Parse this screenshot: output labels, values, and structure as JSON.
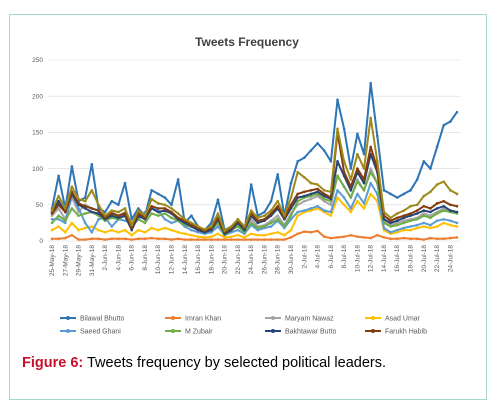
{
  "caption": {
    "label": "Figure 6:",
    "text": " Tweets frequency by selected political leaders."
  },
  "chart_data": {
    "type": "line",
    "title": "Tweets Frequency",
    "xlabel": "",
    "ylabel": "",
    "ylim": [
      0,
      250
    ],
    "yticks": [
      0,
      50,
      100,
      150,
      200,
      250
    ],
    "grid": true,
    "legend_position": "bottom",
    "x": [
      "25-May-18",
      "26-May-18",
      "27-May-18",
      "28-May-18",
      "29-May-18",
      "30-May-18",
      "31-May-18",
      "1-Jun-18",
      "2-Jun-18",
      "3-Jun-18",
      "4-Jun-18",
      "5-Jun-18",
      "6-Jun-18",
      "7-Jun-18",
      "8-Jun-18",
      "9-Jun-18",
      "10-Jun-18",
      "11-Jun-18",
      "12-Jun-18",
      "13-Jun-18",
      "14-Jun-18",
      "15-Jun-18",
      "16-Jun-18",
      "17-Jun-18",
      "18-Jun-18",
      "19-Jun-18",
      "20-Jun-18",
      "21-Jun-18",
      "22-Jun-18",
      "23-Jun-18",
      "24-Jun-18",
      "25-Jun-18",
      "26-Jun-18",
      "27-Jun-18",
      "28-Jun-18",
      "29-Jun-18",
      "30-Jun-18",
      "1-Jul-18",
      "2-Jul-18",
      "3-Jul-18",
      "4-Jul-18",
      "5-Jul-18",
      "6-Jul-18",
      "7-Jul-18",
      "8-Jul-18",
      "9-Jul-18",
      "10-Jul-18",
      "11-Jul-18",
      "12-Jul-18",
      "13-Jul-18",
      "14-Jul-18",
      "15-Jul-18",
      "16-Jul-18",
      "17-Jul-18",
      "18-Jul-18",
      "19-Jul-18",
      "20-Jul-18",
      "21-Jul-18",
      "22-Jul-18",
      "23-Jul-18",
      "24-Jul-18",
      "25-Jul-18"
    ],
    "xticks": [
      "25-May-18",
      "27-May-18",
      "29-May-18",
      "31-May-18",
      "2-Jun-18",
      "4-Jun-18",
      "6-Jun-18",
      "8-Jun-18",
      "10-Jun-18",
      "12-Jun-18",
      "14-Jun-18",
      "16-Jun-18",
      "18-Jun-18",
      "20-Jun-18",
      "22-Jun-18",
      "24-Jun-18",
      "26-Jun-18",
      "28-Jun-18",
      "30-Jun-18",
      "2-Jul-18",
      "4-Jul-18",
      "6-Jul-18",
      "8-Jul-18",
      "10-Jul-18",
      "12-Jul-18",
      "14-Jul-18",
      "16-Jul-18",
      "18-Jul-18",
      "20-Jul-18",
      "22-Jul-18",
      "24-Jul-18"
    ],
    "series": [
      {
        "name": "Bilawal Bhutto",
        "color": "#2e75b6",
        "values": [
          45,
          90,
          45,
          103,
          55,
          60,
          106,
          45,
          40,
          55,
          50,
          80,
          30,
          45,
          35,
          70,
          65,
          60,
          50,
          85,
          25,
          35,
          20,
          15,
          25,
          57,
          15,
          20,
          30,
          15,
          78,
          35,
          40,
          55,
          92,
          35,
          80,
          110,
          115,
          125,
          135,
          125,
          110,
          195,
          155,
          100,
          148,
          120,
          218,
          145,
          70,
          65,
          60,
          65,
          70,
          85,
          110,
          100,
          130,
          160,
          165,
          178
        ]
      },
      {
        "name": "Imran Khan",
        "color": "#ed7d31",
        "values": [
          3,
          3,
          4,
          8,
          2,
          2,
          3,
          3,
          2,
          3,
          3,
          3,
          2,
          3,
          3,
          4,
          3,
          3,
          2,
          3,
          2,
          2,
          2,
          2,
          2,
          2,
          2,
          2,
          2,
          2,
          2,
          2,
          2,
          2,
          2,
          2,
          5,
          10,
          13,
          12,
          14,
          6,
          4,
          5,
          6,
          8,
          6,
          5,
          4,
          8,
          5,
          3,
          3,
          4,
          3,
          3,
          2,
          4,
          3,
          3,
          4,
          5
        ]
      },
      {
        "name": "Maryam Nawaz",
        "color": "#a5a5a5",
        "values": [
          35,
          45,
          30,
          60,
          40,
          50,
          45,
          42,
          30,
          40,
          35,
          40,
          20,
          35,
          30,
          45,
          40,
          42,
          38,
          30,
          25,
          22,
          18,
          15,
          18,
          30,
          12,
          18,
          22,
          15,
          30,
          20,
          22,
          28,
          35,
          22,
          38,
          50,
          55,
          58,
          62,
          55,
          50,
          90,
          75,
          60,
          85,
          70,
          100,
          80,
          28,
          22,
          25,
          28,
          30,
          32,
          38,
          35,
          40,
          45,
          42,
          40
        ]
      },
      {
        "name": "Asad Umar",
        "color": "#ffc000",
        "values": [
          15,
          20,
          12,
          25,
          15,
          18,
          20,
          15,
          12,
          15,
          12,
          15,
          8,
          15,
          12,
          18,
          15,
          18,
          15,
          12,
          10,
          8,
          6,
          5,
          6,
          10,
          5,
          6,
          8,
          5,
          10,
          8,
          8,
          10,
          12,
          8,
          15,
          35,
          40,
          42,
          45,
          40,
          35,
          60,
          50,
          40,
          55,
          45,
          65,
          55,
          15,
          10,
          12,
          15,
          15,
          18,
          20,
          18,
          20,
          25,
          22,
          20
        ]
      },
      {
        "name": "Saeed Ghani",
        "color": "#5b9bd5",
        "values": [
          30,
          30,
          25,
          65,
          45,
          25,
          12,
          30,
          32,
          20,
          30,
          28,
          25,
          30,
          40,
          45,
          42,
          30,
          25,
          28,
          20,
          15,
          12,
          10,
          12,
          20,
          8,
          12,
          15,
          10,
          22,
          15,
          18,
          20,
          28,
          18,
          30,
          40,
          42,
          45,
          48,
          42,
          40,
          70,
          60,
          45,
          65,
          52,
          80,
          65,
          18,
          12,
          15,
          18,
          20,
          22,
          25,
          22,
          28,
          30,
          28,
          25
        ]
      },
      {
        "name": "M Zubair",
        "color": "#70ad47",
        "values": [
          25,
          35,
          28,
          45,
          35,
          38,
          40,
          35,
          28,
          32,
          30,
          35,
          20,
          30,
          25,
          38,
          35,
          38,
          32,
          28,
          22,
          20,
          15,
          12,
          15,
          25,
          8,
          15,
          20,
          12,
          25,
          18,
          20,
          25,
          30,
          20,
          35,
          55,
          60,
          62,
          65,
          58,
          55,
          90,
          75,
          60,
          82,
          70,
          95,
          80,
          25,
          20,
          22,
          25,
          28,
          30,
          35,
          32,
          38,
          42,
          40,
          38
        ]
      },
      {
        "name": "Bakhtawar Butto",
        "color": "#264478",
        "values": [
          40,
          55,
          40,
          65,
          50,
          45,
          40,
          38,
          30,
          35,
          32,
          35,
          15,
          35,
          30,
          45,
          40,
          42,
          38,
          30,
          25,
          20,
          15,
          12,
          15,
          30,
          10,
          15,
          25,
          15,
          35,
          25,
          28,
          35,
          45,
          30,
          45,
          60,
          62,
          65,
          68,
          62,
          58,
          110,
          90,
          70,
          95,
          80,
          120,
          95,
          30,
          25,
          28,
          32,
          35,
          38,
          42,
          40,
          45,
          48,
          42,
          40
        ]
      },
      {
        "name": "Farukh Habib",
        "color": "#843c0c",
        "values": [
          38,
          50,
          40,
          68,
          52,
          48,
          45,
          42,
          32,
          38,
          35,
          38,
          18,
          38,
          32,
          48,
          45,
          45,
          40,
          32,
          28,
          22,
          18,
          14,
          18,
          32,
          12,
          18,
          28,
          18,
          38,
          28,
          30,
          38,
          48,
          32,
          50,
          65,
          68,
          70,
          72,
          65,
          60,
          150,
          95,
          75,
          100,
          85,
          130,
          100,
          35,
          28,
          32,
          35,
          38,
          42,
          48,
          45,
          52,
          55,
          50,
          48
        ]
      },
      {
        "name": "",
        "color": "#9e8a1a",
        "values": [
          42,
          62,
          45,
          75,
          58,
          55,
          70,
          50,
          35,
          42,
          40,
          45,
          22,
          42,
          35,
          58,
          52,
          50,
          45,
          38,
          30,
          25,
          20,
          16,
          20,
          38,
          14,
          20,
          30,
          20,
          42,
          32,
          35,
          42,
          55,
          35,
          60,
          95,
          88,
          80,
          78,
          70,
          68,
          155,
          110,
          85,
          120,
          100,
          170,
          110,
          40,
          32,
          38,
          42,
          48,
          50,
          62,
          68,
          78,
          82,
          70,
          65
        ]
      }
    ]
  }
}
